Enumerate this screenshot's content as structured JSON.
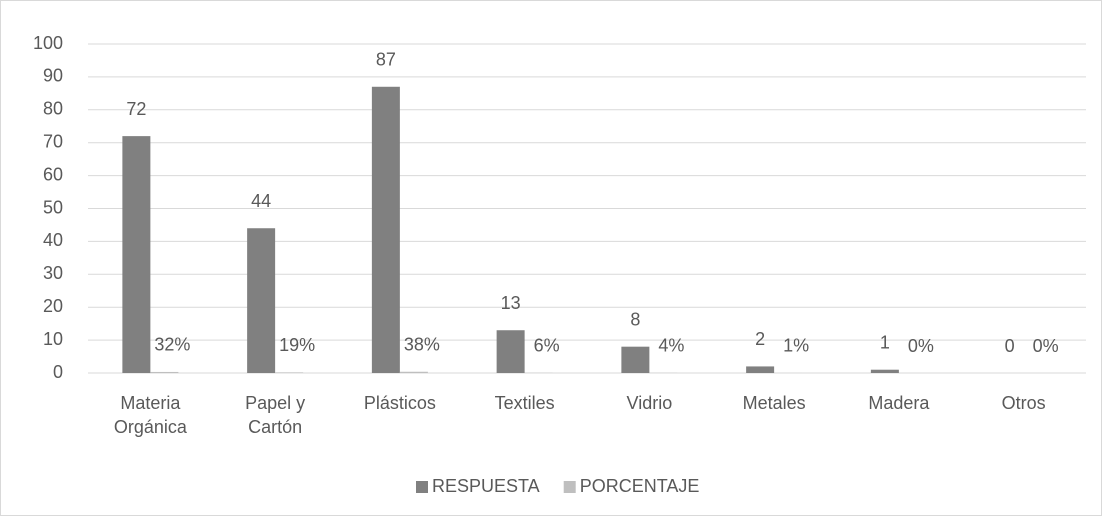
{
  "chart_data": {
    "type": "bar",
    "categories": [
      "Materia Orgánica",
      "Papel y Cartón",
      "Plásticos",
      "Textiles",
      "Vidrio",
      "Metales",
      "Madera",
      "Otros"
    ],
    "series": [
      {
        "name": "RESPUESTA",
        "color": "#808080",
        "values": [
          72,
          44,
          87,
          13,
          8,
          2,
          1,
          0
        ]
      },
      {
        "name": "PORCENTAJE",
        "color": "#bfbfbf",
        "values": [
          0.32,
          0.19,
          0.38,
          0.06,
          0.04,
          0.01,
          0,
          0
        ],
        "value_labels": [
          "32%",
          "19%",
          "38%",
          "6%",
          "4%",
          "1%",
          "0%",
          "0%"
        ]
      }
    ],
    "ylim": [
      0,
      100
    ],
    "yticks": [
      0,
      10,
      20,
      30,
      40,
      50,
      60,
      70,
      80,
      90,
      100
    ],
    "grid": true,
    "legend": "bottom"
  }
}
